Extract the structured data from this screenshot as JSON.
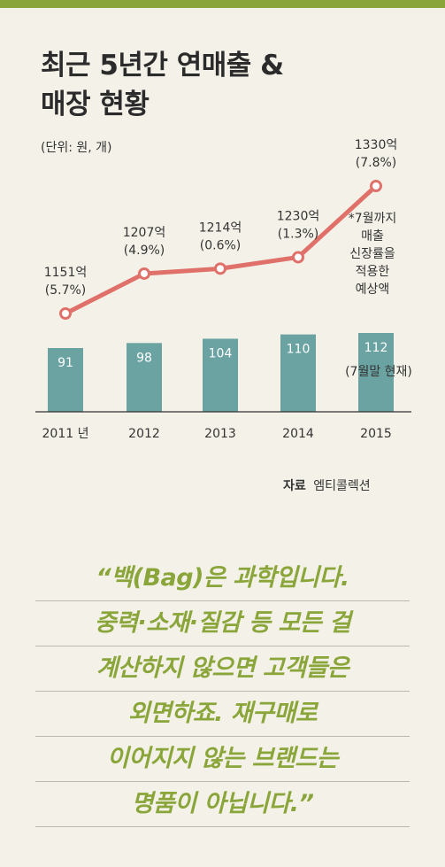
{
  "title_lines": [
    "최근 5년간 연매출 &",
    "매장 현황"
  ],
  "unit_note": "(단위: 원, 개)",
  "chart_data": {
    "type": "bar+line",
    "categories": [
      "2011 년",
      "2012",
      "2013",
      "2014",
      "2015"
    ],
    "bar_values": [
      91,
      98,
      104,
      110,
      112
    ],
    "bar_value_labels": [
      "91",
      "98",
      "104",
      "110",
      "112"
    ],
    "line_values": [
      1151,
      1207,
      1214,
      1230,
      1330
    ],
    "line_labels": [
      {
        "value": "1151억",
        "growth": "(5.7%)"
      },
      {
        "value": "1207억",
        "growth": "(4.9%)"
      },
      {
        "value": "1214억",
        "growth": "(0.6%)"
      },
      {
        "value": "1230억",
        "growth": "(1.3%)"
      },
      {
        "value": "1330억",
        "growth": "(7.8%)"
      }
    ],
    "bar_annotation": "(7월말 현재)",
    "line_annotation": [
      "*7월까지",
      "매출",
      "신장률을",
      "적용한",
      "예상액"
    ],
    "colors": {
      "bar": "#6aa3a2",
      "line": "#e0706a",
      "marker_fill": "#ffffff",
      "axis": "#333333"
    }
  },
  "source_label": "자료",
  "source_value": "엠티콜렉션",
  "quote_lines": [
    "“백(Bag)은 과학입니다.",
    "중력·소재·질감 등 모든 걸",
    "계산하지 않으면 고객들은",
    "외면하죠. 재구매로",
    "이어지지 않는 브랜드는",
    "명품이 아닙니다.”"
  ]
}
